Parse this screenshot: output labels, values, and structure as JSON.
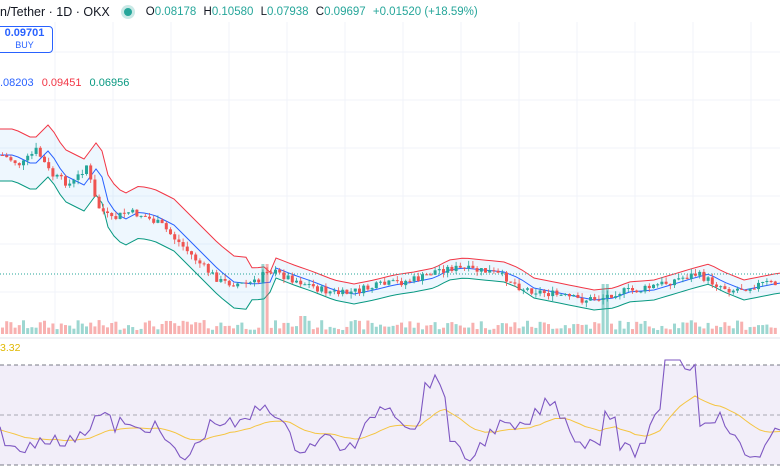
{
  "header": {
    "pair": "n/Tether · 1D · OKX",
    "o_label": "O",
    "o_value": "0.08178",
    "h_label": "H",
    "h_value": "0.10580",
    "l_label": "L",
    "l_value": "0.07938",
    "c_label": "C",
    "c_value": "0.09697",
    "change": "+0.01520 (+18.59%)"
  },
  "buy": {
    "price": "0.09701",
    "label": "BUY"
  },
  "bollinger": {
    "basis": ".08203",
    "upper": "0.09451",
    "lower": "0.06956"
  },
  "rsi": {
    "value": "3.32"
  },
  "colors": {
    "up": "#26a69a",
    "down": "#ef5350",
    "bb_basis": "#2962ff",
    "bb_upper": "#f23645",
    "bb_lower": "#089981",
    "rsi": "#7e57c2",
    "rsi_ma": "#f5c542"
  }
}
